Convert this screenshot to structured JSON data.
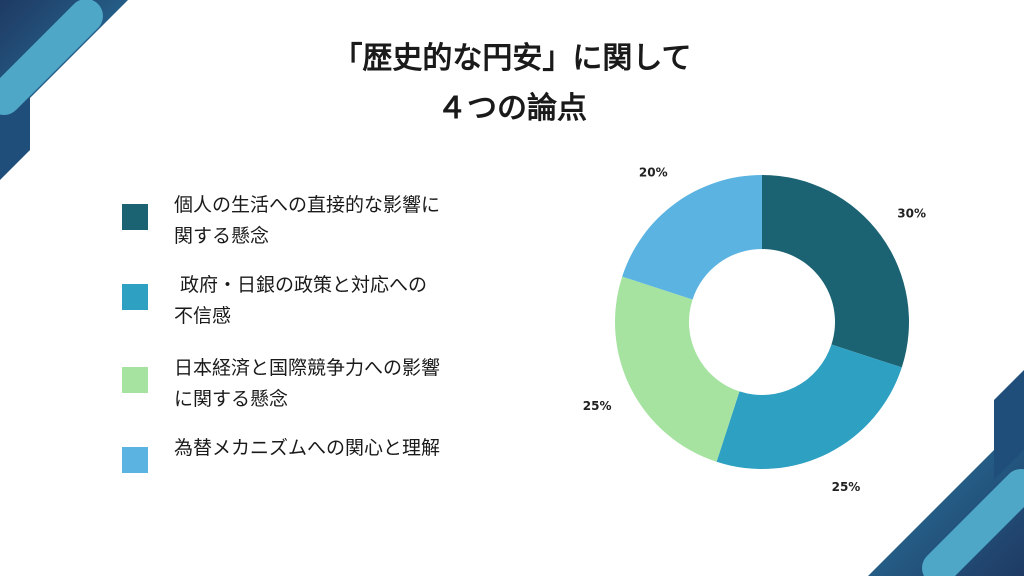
{
  "title": {
    "line1": "「歴史的な円安」に関して",
    "line2": "４つの論点"
  },
  "colors": {
    "dark_teal": "#1b6273",
    "teal": "#2ea0c1",
    "light_green": "#a6e3a1",
    "sky_blue": "#5ab3e0",
    "navy": "#1e3a63"
  },
  "chart_data": {
    "type": "pie",
    "variant": "donut",
    "series": [
      {
        "label": "個人の生活への直接的な影響に関する懸念",
        "value": 30,
        "value_label": "30%",
        "color": "#1b6273"
      },
      {
        "label": "政府・日銀の政策と対応への不信感",
        "value": 25,
        "value_label": "25%",
        "color": "#2ea0c1"
      },
      {
        "label": "日本経済と国際競争力への影響に関する懸念",
        "value": 25,
        "value_label": "25%",
        "color": "#a6e3a1"
      },
      {
        "label": "為替メカニズムへの関心と理解",
        "value": 20,
        "value_label": "20%",
        "color": "#5ab3e0"
      }
    ],
    "legend_position": "left",
    "start_angle": "top",
    "direction": "clockwise"
  },
  "legend": [
    {
      "text": "個人の生活への直接的な影響に\n関する懸念",
      "color": "#1b6273"
    },
    {
      "text": " 政府・日銀の政策と対応への\n不信感",
      "color": "#2ea0c1"
    },
    {
      "text": "日本経済と国際競争力への影響\nに関する懸念",
      "color": "#a6e3a1"
    },
    {
      "text": "為替メカニズムへの関心と理解",
      "color": "#5ab3e0"
    }
  ]
}
